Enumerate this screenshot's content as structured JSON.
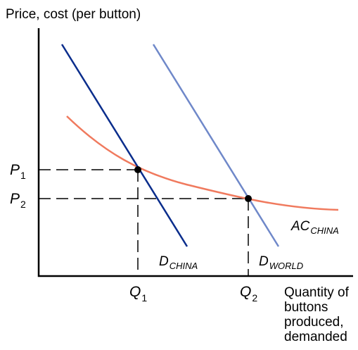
{
  "y_axis_title": "Price, cost (per button)",
  "x_axis_title": "Quantity of buttons produced, demanded",
  "tick_labels": {
    "p1": {
      "main": "P",
      "sub": "1"
    },
    "p2": {
      "main": "P",
      "sub": "2"
    },
    "q1": {
      "main": "Q",
      "sub": "1"
    },
    "q2": {
      "main": "Q",
      "sub": "2"
    }
  },
  "curves": {
    "d_china": {
      "main": "D",
      "sub": "CHINA",
      "color": "#0a2d8c"
    },
    "d_world": {
      "main": "D",
      "sub": "WORLD",
      "color": "#6f88c9"
    },
    "ac_china": {
      "main": "AC",
      "sub": "CHINA",
      "color": "#f07a5e"
    }
  },
  "colors": {
    "axis": "#000000",
    "guide": "#000000",
    "point": "#000000"
  }
}
